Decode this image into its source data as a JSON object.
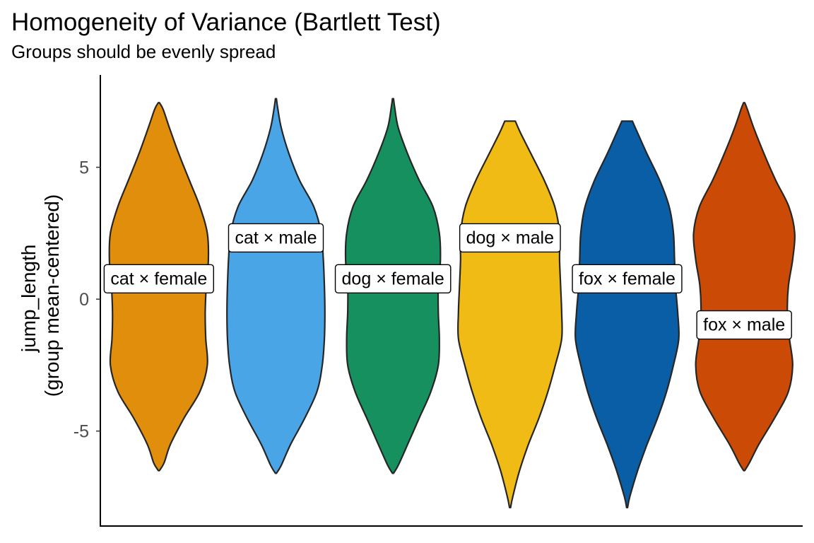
{
  "chart_data": {
    "type": "violin",
    "title": "Homogeneity of Variance (Bartlett Test)",
    "subtitle": "Groups should be evenly spread",
    "ylabel_lines": [
      "jump_length",
      "(group mean-centered)"
    ],
    "xlabel": "",
    "yticks": [
      -5,
      0,
      5
    ],
    "ylim": [
      -8.6,
      8.5
    ],
    "grid": false,
    "groups": [
      {
        "name": "cat × female",
        "color": "#E08E0B",
        "min": -6.5,
        "max": 7.45,
        "label_y": 0.8,
        "profile": [
          [
            -6.5,
            0.01
          ],
          [
            -6.2,
            0.1
          ],
          [
            -5.5,
            0.22
          ],
          [
            -4.5,
            0.48
          ],
          [
            -3.5,
            0.78
          ],
          [
            -2.5,
            0.92
          ],
          [
            -1.5,
            0.89
          ],
          [
            -0.5,
            0.88
          ],
          [
            0.5,
            0.9
          ],
          [
            1.5,
            0.94
          ],
          [
            2.5,
            0.92
          ],
          [
            3.5,
            0.78
          ],
          [
            4.5,
            0.58
          ],
          [
            5.5,
            0.38
          ],
          [
            6.5,
            0.2
          ],
          [
            7.2,
            0.08
          ],
          [
            7.45,
            0.01
          ]
        ]
      },
      {
        "name": "cat × male",
        "color": "#4AA5E6",
        "min": -6.6,
        "max": 7.6,
        "label_y": 2.35,
        "profile": [
          [
            -6.6,
            0.01
          ],
          [
            -6.3,
            0.1
          ],
          [
            -5.5,
            0.28
          ],
          [
            -4.5,
            0.55
          ],
          [
            -3.5,
            0.78
          ],
          [
            -2.5,
            0.88
          ],
          [
            -1.5,
            0.92
          ],
          [
            -0.5,
            0.93
          ],
          [
            0.5,
            0.92
          ],
          [
            1.5,
            0.9
          ],
          [
            2.5,
            0.86
          ],
          [
            3.5,
            0.72
          ],
          [
            4.5,
            0.45
          ],
          [
            5.5,
            0.25
          ],
          [
            6.5,
            0.1
          ],
          [
            7.3,
            0.03
          ],
          [
            7.6,
            0.01
          ]
        ]
      },
      {
        "name": "dog × female",
        "color": "#16905F",
        "min": -6.6,
        "max": 7.6,
        "label_y": 0.8,
        "profile": [
          [
            -6.6,
            0.01
          ],
          [
            -6.3,
            0.1
          ],
          [
            -5.5,
            0.28
          ],
          [
            -4.5,
            0.5
          ],
          [
            -3.5,
            0.72
          ],
          [
            -2.5,
            0.86
          ],
          [
            -1.5,
            0.88
          ],
          [
            -0.5,
            0.86
          ],
          [
            0.5,
            0.86
          ],
          [
            1.5,
            0.9
          ],
          [
            2.5,
            0.88
          ],
          [
            3.5,
            0.76
          ],
          [
            4.5,
            0.5
          ],
          [
            5.5,
            0.28
          ],
          [
            6.5,
            0.1
          ],
          [
            7.3,
            0.03
          ],
          [
            7.6,
            0.01
          ]
        ]
      },
      {
        "name": "dog × male",
        "color": "#F0BB14",
        "min": -7.9,
        "max": 6.75,
        "label_y": 2.35,
        "profile": [
          [
            -7.9,
            0.01
          ],
          [
            -7.5,
            0.05
          ],
          [
            -6.5,
            0.18
          ],
          [
            -5.5,
            0.35
          ],
          [
            -4.5,
            0.55
          ],
          [
            -3.5,
            0.72
          ],
          [
            -2.5,
            0.86
          ],
          [
            -1.5,
            0.98
          ],
          [
            -0.5,
            0.98
          ],
          [
            0.5,
            0.96
          ],
          [
            1.5,
            0.94
          ],
          [
            2.5,
            0.94
          ],
          [
            3.5,
            0.85
          ],
          [
            4.5,
            0.65
          ],
          [
            5.5,
            0.4
          ],
          [
            6.3,
            0.2
          ],
          [
            6.75,
            0.1
          ]
        ]
      },
      {
        "name": "fox × female",
        "color": "#0A5EA6",
        "min": -7.9,
        "max": 6.75,
        "label_y": 0.8,
        "profile": [
          [
            -7.9,
            0.01
          ],
          [
            -7.5,
            0.05
          ],
          [
            -6.5,
            0.2
          ],
          [
            -5.5,
            0.38
          ],
          [
            -4.5,
            0.58
          ],
          [
            -3.5,
            0.75
          ],
          [
            -2.5,
            0.88
          ],
          [
            -1.5,
            0.98
          ],
          [
            -0.5,
            0.96
          ],
          [
            0.5,
            0.92
          ],
          [
            1.5,
            0.9
          ],
          [
            2.5,
            0.88
          ],
          [
            3.5,
            0.8
          ],
          [
            4.5,
            0.62
          ],
          [
            5.5,
            0.38
          ],
          [
            6.3,
            0.2
          ],
          [
            6.75,
            0.1
          ]
        ]
      },
      {
        "name": "fox × male",
        "color": "#CA4A06",
        "min": -6.5,
        "max": 7.45,
        "label_y": -0.95,
        "profile": [
          [
            -6.5,
            0.01
          ],
          [
            -6.2,
            0.1
          ],
          [
            -5.5,
            0.28
          ],
          [
            -4.5,
            0.58
          ],
          [
            -3.5,
            0.84
          ],
          [
            -2.5,
            0.92
          ],
          [
            -1.5,
            0.86
          ],
          [
            -0.5,
            0.82
          ],
          [
            0.5,
            0.84
          ],
          [
            1.5,
            0.92
          ],
          [
            2.5,
            0.96
          ],
          [
            3.5,
            0.85
          ],
          [
            4.5,
            0.6
          ],
          [
            5.5,
            0.38
          ],
          [
            6.5,
            0.18
          ],
          [
            7.2,
            0.06
          ],
          [
            7.45,
            0.01
          ]
        ]
      }
    ]
  }
}
